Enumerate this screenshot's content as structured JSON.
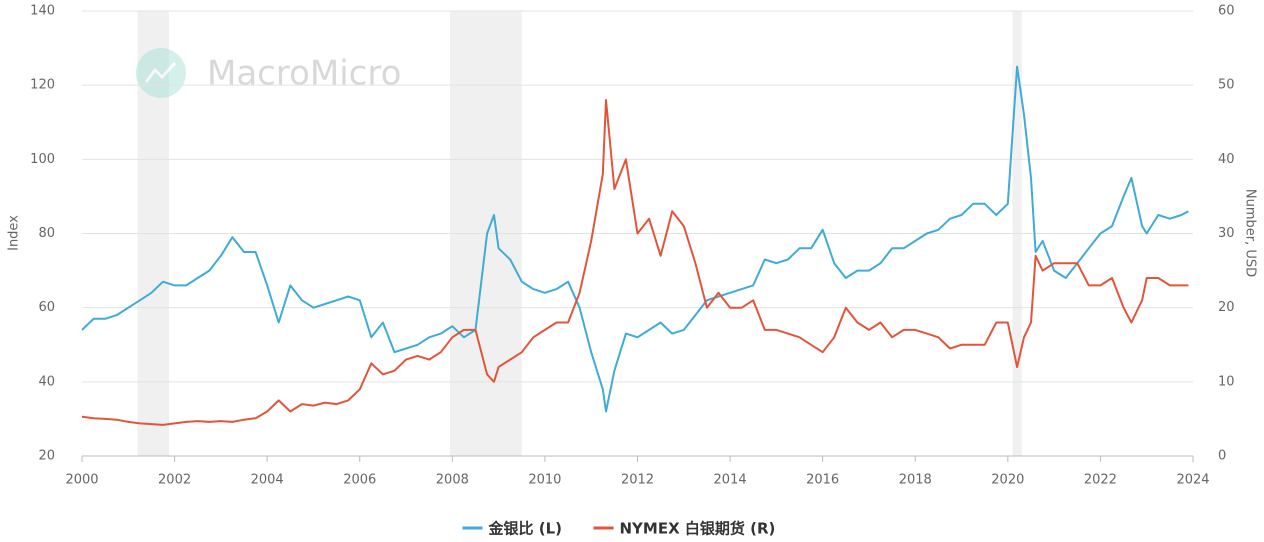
{
  "chart_data": {
    "type": "line",
    "watermark": "MacroMicro",
    "y_label": "Index",
    "y2_label": "Number, USD",
    "xlim": [
      2000,
      2024
    ],
    "xticks": [
      2000,
      2002,
      2004,
      2006,
      2008,
      2010,
      2012,
      2014,
      2016,
      2018,
      2020,
      2022,
      2024
    ],
    "ylim": [
      20,
      140
    ],
    "yticks": [
      20,
      40,
      60,
      80,
      100,
      120,
      140
    ],
    "y2lim": [
      0,
      60
    ],
    "y2ticks": [
      0,
      10,
      20,
      30,
      40,
      50,
      60
    ],
    "grid": true,
    "legend": "bottom",
    "shade_color": "#f0f0f0",
    "recessions": [
      [
        2001.2,
        2001.88
      ],
      [
        2007.95,
        2009.5
      ],
      [
        2020.1,
        2020.3
      ]
    ],
    "x": [
      2000,
      2000.25,
      2000.5,
      2000.75,
      2001,
      2001.25,
      2001.5,
      2001.75,
      2002,
      2002.25,
      2002.5,
      2002.75,
      2003,
      2003.25,
      2003.5,
      2003.75,
      2004,
      2004.25,
      2004.5,
      2004.75,
      2005,
      2005.25,
      2005.5,
      2005.75,
      2006,
      2006.25,
      2006.5,
      2006.75,
      2007,
      2007.25,
      2007.5,
      2007.75,
      2008,
      2008.25,
      2008.5,
      2008.75,
      2008.9,
      2009,
      2009.25,
      2009.5,
      2009.75,
      2010,
      2010.25,
      2010.5,
      2010.75,
      2011,
      2011.25,
      2011.32,
      2011.5,
      2011.75,
      2012,
      2012.25,
      2012.5,
      2012.75,
      2013,
      2013.25,
      2013.5,
      2013.75,
      2014,
      2014.25,
      2014.5,
      2014.75,
      2015,
      2015.25,
      2015.5,
      2015.75,
      2016,
      2016.25,
      2016.5,
      2016.75,
      2017,
      2017.25,
      2017.5,
      2017.75,
      2018,
      2018.25,
      2018.5,
      2018.75,
      2019,
      2019.25,
      2019.5,
      2019.75,
      2020,
      2020.2,
      2020.35,
      2020.5,
      2020.6,
      2020.75,
      2021,
      2021.25,
      2021.5,
      2021.75,
      2022,
      2022.25,
      2022.5,
      2022.67,
      2022.9,
      2023,
      2023.25,
      2023.5,
      2023.75,
      2023.9
    ],
    "series": [
      {
        "name": "金银比 (L)",
        "color": "#3fabd6",
        "axis": "y",
        "values": [
          54,
          57,
          57,
          58,
          60,
          62,
          64,
          67,
          66,
          66,
          68,
          70,
          74,
          79,
          75,
          75,
          66,
          56,
          66,
          62,
          60,
          61,
          62,
          63,
          62,
          52,
          56,
          48,
          49,
          50,
          52,
          53,
          55,
          52,
          54,
          80,
          85,
          76,
          73,
          67,
          65,
          64,
          65,
          67,
          60,
          48,
          38,
          32,
          43,
          53,
          52,
          54,
          56,
          53,
          54,
          58,
          62,
          63,
          64,
          65,
          66,
          73,
          72,
          73,
          76,
          76,
          81,
          72,
          68,
          70,
          70,
          72,
          76,
          76,
          78,
          80,
          81,
          84,
          85,
          88,
          88,
          85,
          88,
          125,
          112,
          95,
          75,
          78,
          70,
          68,
          72,
          76,
          80,
          82,
          90,
          95,
          82,
          80,
          85,
          84,
          85,
          86
        ]
      },
      {
        "name": "NYMEX 白银期货 (R)",
        "color": "#e2553a",
        "axis": "y2",
        "values": [
          5.3,
          5.1,
          5.0,
          4.9,
          4.6,
          4.4,
          4.3,
          4.2,
          4.4,
          4.6,
          4.7,
          4.6,
          4.7,
          4.6,
          4.9,
          5.1,
          6.0,
          7.5,
          6.0,
          7.0,
          6.8,
          7.2,
          7.0,
          7.5,
          9.0,
          12.5,
          11,
          11.5,
          13,
          13.5,
          13,
          14,
          16,
          17,
          17,
          11,
          10,
          12,
          13,
          14,
          16,
          17,
          18,
          18,
          22,
          29,
          38,
          48,
          36,
          40,
          30,
          32,
          27,
          33,
          31,
          26,
          20,
          22,
          20,
          20,
          21,
          17,
          17,
          16.5,
          16,
          15,
          14,
          16,
          20,
          18,
          17,
          18,
          16,
          17,
          17,
          16.5,
          16,
          14.5,
          15,
          15,
          15,
          18,
          18,
          12,
          16,
          18,
          27,
          25,
          26,
          26,
          26,
          23,
          23,
          24,
          20,
          18,
          21,
          24,
          24,
          23,
          23,
          23
        ]
      }
    ]
  }
}
